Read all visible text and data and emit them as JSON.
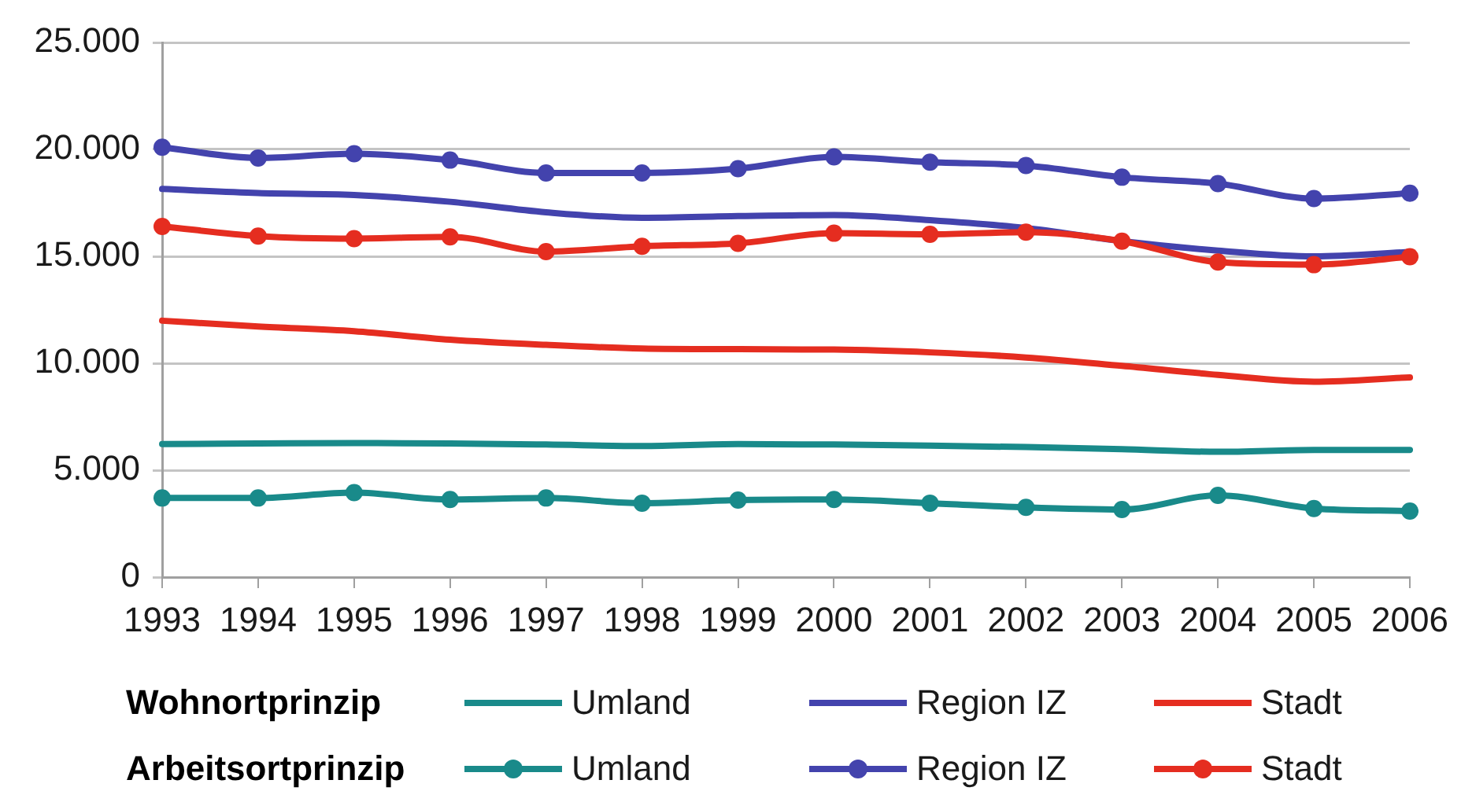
{
  "chart_data": {
    "type": "line",
    "categories": [
      "1993",
      "1994",
      "1995",
      "1996",
      "1997",
      "1998",
      "1999",
      "2000",
      "2001",
      "2002",
      "2003",
      "2004",
      "2005",
      "2006"
    ],
    "series": [
      {
        "name": "Umland",
        "color": "#198a8a",
        "marker": "none",
        "values": [
          6220,
          6250,
          6270,
          6250,
          6200,
          6130,
          6220,
          6200,
          6150,
          6080,
          5980,
          5860,
          5950,
          5950
        ]
      },
      {
        "name": "Region IZ",
        "color": "#4343ad",
        "marker": "none",
        "values": [
          18150,
          17960,
          17870,
          17550,
          17060,
          16800,
          16880,
          16930,
          16690,
          16320,
          15710,
          15270,
          15000,
          15200
        ]
      },
      {
        "name": "Stadt",
        "color": "#e52d20",
        "marker": "none",
        "values": [
          11990,
          11720,
          11500,
          11100,
          10860,
          10690,
          10660,
          10640,
          10510,
          10270,
          9880,
          9460,
          9140,
          9340
        ]
      },
      {
        "name": "Umland",
        "color": "#198a8a",
        "marker": "circle",
        "values": [
          3700,
          3700,
          3950,
          3630,
          3700,
          3460,
          3600,
          3630,
          3460,
          3260,
          3160,
          3820,
          3210,
          3090
        ]
      },
      {
        "name": "Region IZ",
        "color": "#4343ad",
        "marker": "circle",
        "values": [
          20100,
          19600,
          19800,
          19500,
          18900,
          18900,
          19100,
          19650,
          19400,
          19250,
          18700,
          18400,
          17700,
          17950
        ]
      },
      {
        "name": "Stadt",
        "color": "#e52d20",
        "marker": "circle",
        "values": [
          16400,
          15950,
          15830,
          15910,
          15220,
          15470,
          15610,
          16080,
          16030,
          16130,
          15710,
          14730,
          14610,
          14980
        ]
      }
    ],
    "ylim": [
      0,
      25000
    ],
    "yticks": [
      0,
      {
        "value": 5000,
        "label": "5.000"
      },
      {
        "value": 10000,
        "label": "10.000"
      },
      {
        "value": 15000,
        "label": "15.000"
      },
      {
        "value": 20000,
        "label": "20.000"
      },
      {
        "value": 25000,
        "label": "25.000"
      }
    ],
    "grid": "y",
    "legend": "bottom",
    "line_style": "solid",
    "annotations": [
      "Wohnortprinzip",
      "Arbeitsortprinzip"
    ]
  }
}
